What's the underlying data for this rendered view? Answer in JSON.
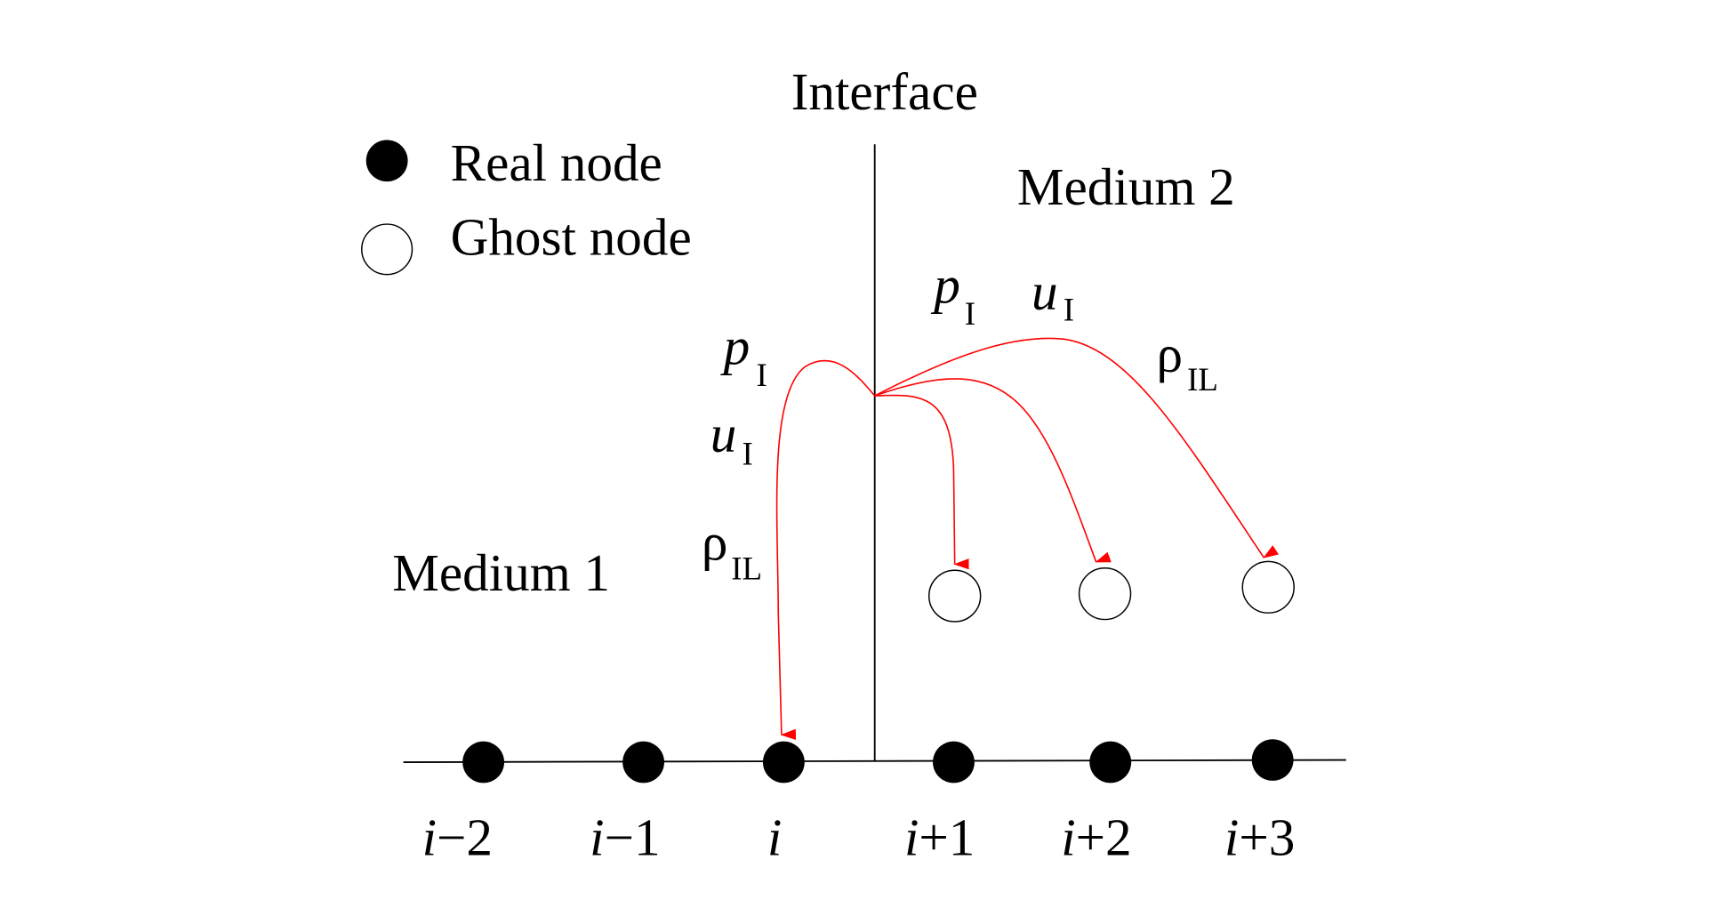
{
  "title": "Interface",
  "legend": {
    "real_node": "Real node",
    "ghost_node": "Ghost node"
  },
  "regions": {
    "left": "Medium 1",
    "right": "Medium 2"
  },
  "left_labels": [
    {
      "sym": "p",
      "sub": "I"
    },
    {
      "sym": "u",
      "sub": "I"
    },
    {
      "sym": "ρ",
      "sub": "IL"
    }
  ],
  "right_labels": [
    {
      "sym": "p",
      "sub": "I"
    },
    {
      "sym": "u",
      "sub": "I"
    },
    {
      "sym": "ρ",
      "sub": "IL"
    }
  ],
  "node_labels": [
    {
      "i": "i",
      "rest": "−2"
    },
    {
      "i": "i",
      "rest": "−1"
    },
    {
      "i": "i",
      "rest": ""
    },
    {
      "i": "i",
      "rest": "+1"
    },
    {
      "i": "i",
      "rest": "+2"
    },
    {
      "i": "i",
      "rest": "+3"
    }
  ],
  "colors": {
    "arrow": "#ff0000",
    "line": "#000000"
  }
}
